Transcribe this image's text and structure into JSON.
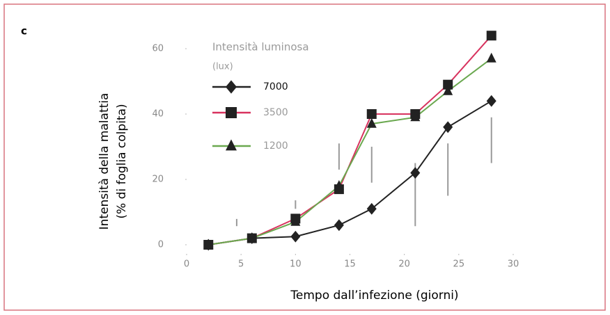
{
  "chart_data": {
    "type": "line",
    "panel_label": "c",
    "xlabel": "Tempo dall’infezione (giorni)",
    "ylabel": [
      "Intensità della malattia",
      "(% di foglia colpita)"
    ],
    "legend_title": [
      "Intensità luminosa",
      "(lux)"
    ],
    "xlim": [
      0,
      30
    ],
    "xticks": [
      0,
      5,
      10,
      15,
      20,
      25,
      30
    ],
    "ylim": [
      0,
      60
    ],
    "yticks": [
      0,
      20,
      40,
      60
    ],
    "x": [
      2,
      6,
      10,
      14,
      17,
      21,
      24,
      28
    ],
    "series": [
      {
        "name": "7000",
        "color": "#222222",
        "marker": "diamond",
        "values": [
          0,
          2,
          2.5,
          6,
          11,
          22,
          36,
          44
        ]
      },
      {
        "name": "3500",
        "color": "#d8325e",
        "marker": "square",
        "values": [
          0,
          2,
          8,
          17,
          40,
          40,
          49,
          64
        ]
      },
      {
        "name": "1200",
        "color": "#6aa84f",
        "marker": "triangle",
        "values": [
          0,
          2,
          7,
          18,
          37,
          39,
          47,
          57
        ]
      }
    ],
    "ranges": {
      "color": "#999999",
      "x": [
        4.6,
        10,
        14,
        17,
        21,
        24,
        28
      ],
      "low": [
        5.7,
        11,
        23,
        19,
        5.7,
        15,
        25
      ],
      "high": [
        7.9,
        13.6,
        31,
        30,
        25,
        31,
        39
      ]
    }
  }
}
